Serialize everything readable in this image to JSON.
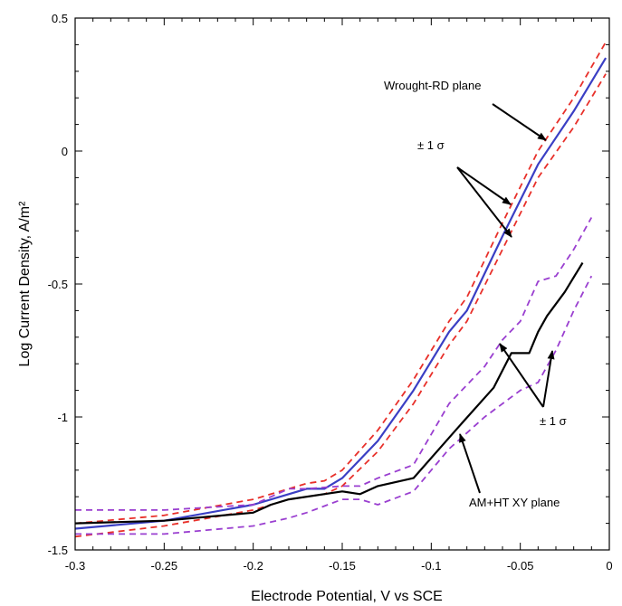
{
  "chart_data": {
    "type": "line",
    "title": "",
    "xlabel": "Electrode Potential, V vs SCE",
    "ylabel": "Log Current Density, A/m²",
    "xlim": [
      -0.3,
      0.0
    ],
    "ylim": [
      -1.5,
      0.5
    ],
    "x_ticks": [
      "-0.3",
      "-0.25",
      "-0.2",
      "-0.15",
      "-0.1",
      "-0.05",
      "0"
    ],
    "y_ticks": [
      "0.5",
      "0",
      "-0.5",
      "-1",
      "-1.5"
    ],
    "grid": false,
    "colors": {
      "wrought_mean": "#3a3fc4",
      "wrought_sigma": "#e8302a",
      "am_mean": "#000000",
      "am_sigma": "#9a3fd0"
    },
    "series": [
      {
        "key": "wrought_mean",
        "style": "solid",
        "x": [
          -0.3,
          -0.25,
          -0.2,
          -0.18,
          -0.17,
          -0.16,
          -0.15,
          -0.13,
          -0.11,
          -0.09,
          -0.08,
          -0.06,
          -0.04,
          -0.02,
          -0.002
        ],
        "y": [
          -1.42,
          -1.39,
          -1.33,
          -1.29,
          -1.27,
          -1.27,
          -1.23,
          -1.09,
          -0.9,
          -0.68,
          -0.6,
          -0.32,
          -0.05,
          0.15,
          0.35
        ]
      },
      {
        "key": "wrought_sigma_upper",
        "style": "dashed",
        "x": [
          -0.3,
          -0.25,
          -0.2,
          -0.18,
          -0.17,
          -0.16,
          -0.15,
          -0.13,
          -0.11,
          -0.09,
          -0.08,
          -0.06,
          -0.04,
          -0.02,
          -0.002
        ],
        "y": [
          -1.4,
          -1.37,
          -1.31,
          -1.27,
          -1.25,
          -1.24,
          -1.2,
          -1.05,
          -0.86,
          -0.64,
          -0.55,
          -0.27,
          0.0,
          0.2,
          0.41
        ]
      },
      {
        "key": "wrought_sigma_lower",
        "style": "dashed",
        "x": [
          -0.3,
          -0.25,
          -0.2,
          -0.18,
          -0.17,
          -0.16,
          -0.15,
          -0.13,
          -0.11,
          -0.09,
          -0.08,
          -0.06,
          -0.04,
          -0.02,
          -0.002
        ],
        "y": [
          -1.45,
          -1.41,
          -1.35,
          -1.31,
          -1.3,
          -1.29,
          -1.26,
          -1.13,
          -0.95,
          -0.73,
          -0.64,
          -0.37,
          -0.1,
          0.09,
          0.29
        ]
      },
      {
        "key": "am_mean",
        "style": "solid",
        "x": [
          -0.3,
          -0.25,
          -0.2,
          -0.19,
          -0.18,
          -0.15,
          -0.14,
          -0.13,
          -0.11,
          -0.085,
          -0.065,
          -0.055,
          -0.045,
          -0.04,
          -0.035,
          -0.025,
          -0.015
        ],
        "y": [
          -1.4,
          -1.39,
          -1.36,
          -1.33,
          -1.31,
          -1.28,
          -1.29,
          -1.26,
          -1.23,
          -1.04,
          -0.89,
          -0.76,
          -0.76,
          -0.68,
          -0.62,
          -0.53,
          -0.42
        ]
      },
      {
        "key": "am_sigma_upper",
        "style": "dashed",
        "x": [
          -0.3,
          -0.25,
          -0.2,
          -0.18,
          -0.17,
          -0.15,
          -0.14,
          -0.13,
          -0.11,
          -0.09,
          -0.07,
          -0.06,
          -0.05,
          -0.04,
          -0.03,
          -0.02,
          -0.01
        ],
        "y": [
          -1.35,
          -1.35,
          -1.33,
          -1.27,
          -1.27,
          -1.26,
          -1.26,
          -1.23,
          -1.18,
          -0.95,
          -0.81,
          -0.71,
          -0.64,
          -0.49,
          -0.47,
          -0.37,
          -0.25
        ]
      },
      {
        "key": "am_sigma_lower",
        "style": "dashed",
        "x": [
          -0.3,
          -0.25,
          -0.2,
          -0.18,
          -0.17,
          -0.15,
          -0.14,
          -0.13,
          -0.11,
          -0.09,
          -0.07,
          -0.05,
          -0.04,
          -0.03,
          -0.02,
          -0.01
        ],
        "y": [
          -1.44,
          -1.44,
          -1.41,
          -1.38,
          -1.36,
          -1.31,
          -1.31,
          -1.33,
          -1.28,
          -1.12,
          -1.0,
          -0.9,
          -0.87,
          -0.75,
          -0.6,
          -0.47
        ]
      }
    ],
    "annotations": [
      {
        "key": "wrought_label",
        "text": "Wrought-RD plane"
      },
      {
        "key": "sigma_wrought",
        "text": "± 1 σ"
      },
      {
        "key": "sigma_am",
        "text": "± 1 σ"
      },
      {
        "key": "am_label",
        "text": "AM+HT XY plane"
      }
    ]
  }
}
